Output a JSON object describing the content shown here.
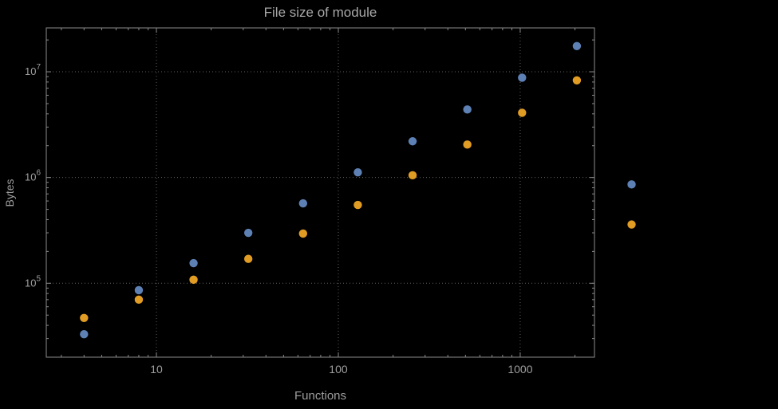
{
  "chart_data": {
    "type": "scatter",
    "title": "File size of module",
    "xlabel": "Functions",
    "ylabel": "Bytes",
    "x_scale": "log",
    "y_scale": "log",
    "xlim": [
      2.48,
      2560
    ],
    "ylim": [
      20000,
      26000000
    ],
    "grid": "dotted-at-decades",
    "legend": "none",
    "x_ticks": [
      {
        "value": 10,
        "label": "10"
      },
      {
        "value": 100,
        "label": "100"
      },
      {
        "value": 1000,
        "label": "1000"
      }
    ],
    "y_ticks": [
      {
        "value": 100000,
        "base": "10",
        "exp": "5"
      },
      {
        "value": 1000000,
        "base": "10",
        "exp": "6"
      },
      {
        "value": 10000000,
        "base": "10",
        "exp": "7"
      }
    ],
    "series": [
      {
        "name": "series-blue",
        "color": "#5e81b5",
        "points": [
          [
            4,
            33000
          ],
          [
            8,
            86000
          ],
          [
            16,
            155000
          ],
          [
            32,
            300000
          ],
          [
            64,
            570000
          ],
          [
            128,
            1120000
          ],
          [
            256,
            2200000
          ],
          [
            512,
            4400000
          ],
          [
            1024,
            8800000
          ],
          [
            2048,
            17500000
          ],
          [
            4096,
            860000
          ]
        ]
      },
      {
        "name": "series-orange",
        "color": "#e19c24",
        "points": [
          [
            4,
            47000
          ],
          [
            8,
            70000
          ],
          [
            16,
            108000
          ],
          [
            32,
            170000
          ],
          [
            64,
            295000
          ],
          [
            128,
            550000
          ],
          [
            256,
            1050000
          ],
          [
            512,
            2050000
          ],
          [
            1024,
            4100000
          ],
          [
            2048,
            8300000
          ],
          [
            4096,
            360000
          ]
        ]
      }
    ]
  },
  "colors": {
    "background": "#000000",
    "frame": "#8b8b8b",
    "grid": "#5f5f5f",
    "text": "#9e9e9e",
    "series_blue": "#5e81b5",
    "series_orange": "#e19c24"
  }
}
